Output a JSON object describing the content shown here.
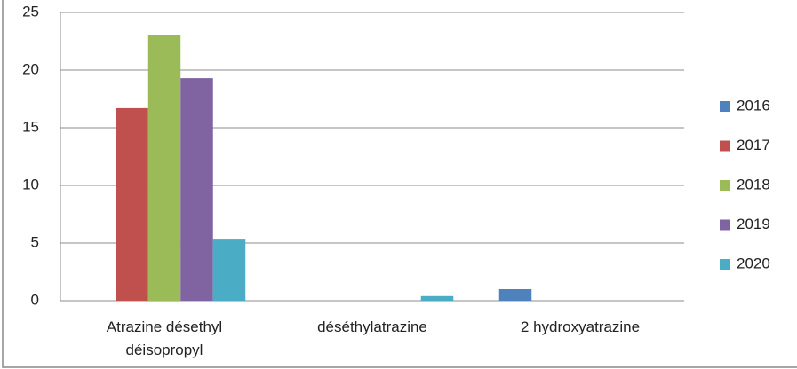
{
  "chart_data": {
    "type": "bar",
    "categories": [
      "Atrazine désethyl déisopropyl",
      "déséthylatrazine",
      "2 hydroxyatrazine"
    ],
    "series": [
      {
        "name": "2016",
        "color": "#4f81bd",
        "values": [
          0,
          0,
          1.0
        ]
      },
      {
        "name": "2017",
        "color": "#c0504d",
        "values": [
          16.7,
          0,
          0
        ]
      },
      {
        "name": "2018",
        "color": "#9bbb59",
        "values": [
          23.0,
          0,
          0
        ]
      },
      {
        "name": "2019",
        "color": "#8064a2",
        "values": [
          19.3,
          0,
          0
        ]
      },
      {
        "name": "2020",
        "color": "#4bacc6",
        "values": [
          5.3,
          0.4,
          0
        ]
      }
    ],
    "ylim": [
      0,
      25
    ],
    "yticks": [
      0,
      5,
      10,
      15,
      20,
      25
    ],
    "grid": true,
    "legend": "right"
  }
}
